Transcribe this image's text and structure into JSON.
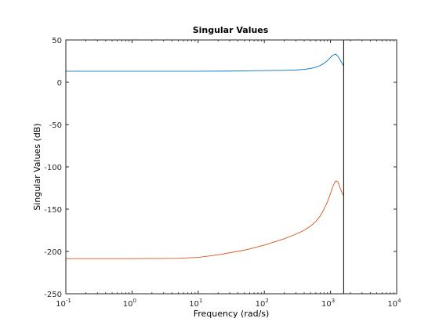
{
  "chart_data": {
    "type": "line",
    "title": "Singular Values",
    "xlabel": "Frequency (rad/s)",
    "ylabel": "Singular Values (dB)",
    "xscale": "log",
    "xlim": [
      0.1,
      10000
    ],
    "ylim": [
      -250,
      50
    ],
    "grid": false,
    "legend": "none",
    "xticks": [
      {
        "value": 0.1,
        "base": "10",
        "exp": "-1"
      },
      {
        "value": 1,
        "base": "10",
        "exp": "0"
      },
      {
        "value": 10,
        "base": "10",
        "exp": "1"
      },
      {
        "value": 100,
        "base": "10",
        "exp": "2"
      },
      {
        "value": 1000,
        "base": "10",
        "exp": "3"
      },
      {
        "value": 10000,
        "base": "10",
        "exp": "4"
      }
    ],
    "yticks": [
      {
        "value": 50,
        "label": "50"
      },
      {
        "value": 0,
        "label": "0"
      },
      {
        "value": -50,
        "label": "-50"
      },
      {
        "value": -100,
        "label": "-100"
      },
      {
        "value": -150,
        "label": "-150"
      },
      {
        "value": -200,
        "label": "-200"
      },
      {
        "value": -250,
        "label": "-250"
      }
    ],
    "series": [
      {
        "color": "#0072bd",
        "x": [
          0.1,
          1,
          10,
          30,
          50,
          100,
          200,
          300,
          400,
          500,
          600,
          700,
          800,
          900,
          1000,
          1100,
          1200,
          1300,
          1400,
          1500,
          1580
        ],
        "y": [
          13,
          13,
          13,
          13.2,
          13.5,
          13.8,
          14.1,
          14.5,
          15.2,
          16.3,
          17.8,
          19.8,
          22.4,
          25.6,
          29.3,
          32.3,
          33.2,
          30.5,
          26.3,
          22.3,
          19.2
        ]
      },
      {
        "color": "#d95319",
        "x": [
          0.1,
          1,
          5,
          10,
          20,
          50,
          100,
          200,
          300,
          400,
          500,
          600,
          700,
          800,
          900,
          1000,
          1100,
          1200,
          1300,
          1400,
          1500,
          1580
        ],
        "y": [
          -208.5,
          -208.5,
          -208.2,
          -207,
          -204,
          -198.5,
          -192.5,
          -185,
          -179.5,
          -175,
          -170,
          -164.5,
          -158,
          -150,
          -141,
          -131.5,
          -122,
          -116.5,
          -118,
          -125,
          -131,
          -134
        ]
      }
    ],
    "vline": {
      "x": 1580,
      "color": "#000000"
    }
  }
}
